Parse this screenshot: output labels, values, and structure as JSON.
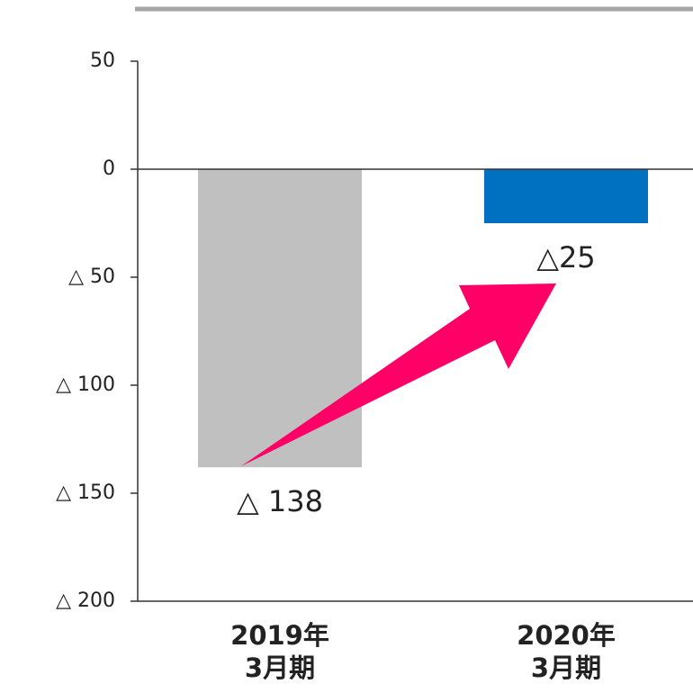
{
  "chart_data": {
    "type": "bar",
    "categories": [
      "2019年\n3月期",
      "2020年\n3月期"
    ],
    "values": [
      -138,
      -25
    ],
    "value_labels": [
      "△ 138",
      "△25"
    ],
    "colors": [
      "#c0c0c0",
      "#0070c0"
    ],
    "ylim": [
      -200,
      50
    ],
    "yticks": [
      50,
      0,
      {
        "value": -50,
        "label": "△ 50"
      },
      {
        "value": -100,
        "label": "△ 100"
      },
      {
        "value": -150,
        "label": "△ 150"
      },
      {
        "value": -200,
        "label": "△ 200"
      }
    ],
    "grid": false
  }
}
